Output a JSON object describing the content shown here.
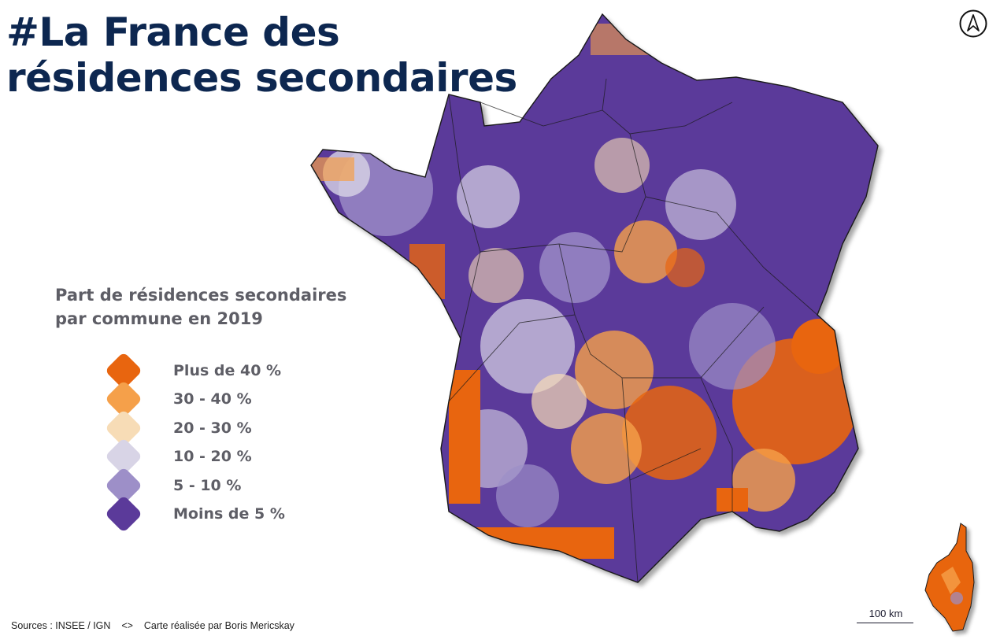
{
  "title": "#La France des résidences secondaires",
  "legend": {
    "title_line1": "Part de résidences secondaires",
    "title_line2": "par commune en 2019",
    "items": [
      {
        "label": "Plus de 40 %",
        "color": "#e8650f"
      },
      {
        "label": "30 - 40 %",
        "color": "#f5a04a"
      },
      {
        "label": "20 - 30 %",
        "color": "#f7dcb6"
      },
      {
        "label": "10 - 20 %",
        "color": "#d8d4e6"
      },
      {
        "label": "5 - 10 %",
        "color": "#9d8fc8"
      },
      {
        "label": "Moins de 5 %",
        "color": "#5b3a9a"
      }
    ]
  },
  "scale": {
    "label": "100 km"
  },
  "footer": {
    "sources": "Sources : INSEE / IGN",
    "separator": "<>",
    "credit": "Carte réalisée par Boris Mericskay"
  },
  "colors": {
    "title": "#0d2750",
    "legend_text": "#5e5e66",
    "border": "#1a1a1a"
  }
}
